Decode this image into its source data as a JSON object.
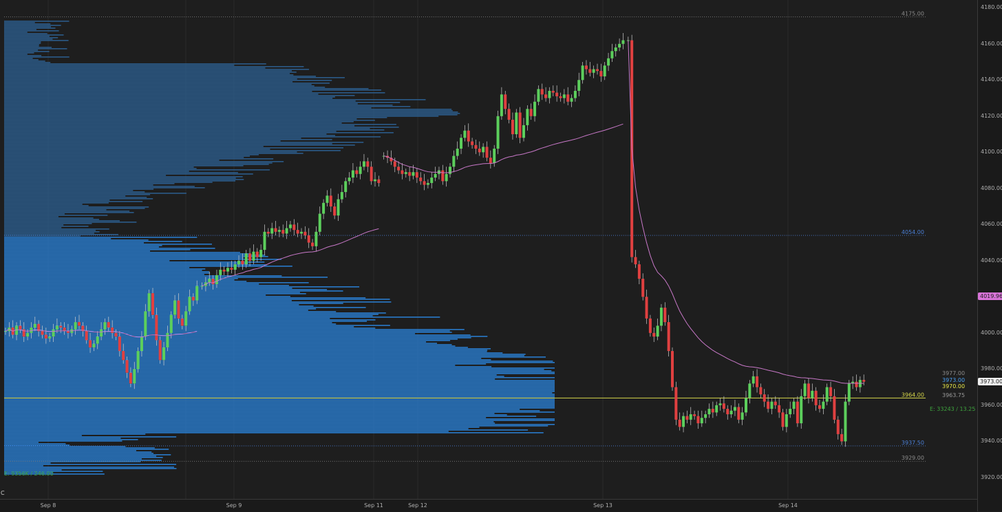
{
  "chart_data": {
    "type": "candlestick",
    "instrument_note": "",
    "y_range": [
      3915,
      4182
    ],
    "price_ticks": [
      "3920.00",
      "3940.00",
      "3960.00",
      "3980.00",
      "4000.00",
      "4020.00",
      "4040.00",
      "4060.00",
      "4080.00",
      "4100.00",
      "4120.00",
      "4140.00",
      "4160.00",
      "4180.00"
    ],
    "time_labels": [
      "Sep 8",
      "Sep 9",
      "Sep 11",
      "Sep 12",
      "Sep 13",
      "Sep 14"
    ],
    "levels": [
      {
        "label": "4175.00",
        "price": 4175,
        "color": "#8a8a8a",
        "style": "dotted"
      },
      {
        "label": "4054.00",
        "price": 4054,
        "color": "#4a7fd6",
        "style": "dotted"
      },
      {
        "label": "3964.00",
        "price": 3964,
        "color": "#d8d84a",
        "style": "solid"
      },
      {
        "label": "3937.50",
        "price": 3937.5,
        "color": "#4a7fd6",
        "style": "dotted"
      },
      {
        "label": "3929.00",
        "price": 3929,
        "color": "#8a8a8a",
        "style": "dotted"
      }
    ],
    "price_tags": [
      {
        "label": "4019.96",
        "price": 4019.96,
        "bg": "#d874d8",
        "fg": "#1e1e1e"
      },
      {
        "label": "3973.00",
        "price": 3973,
        "bg": "#f0f0f0",
        "fg": "#1e1e1e"
      }
    ],
    "right_labels": [
      {
        "label": "3977.00",
        "price": 3977,
        "color": "#8a8a8a"
      },
      {
        "label": "3973.00",
        "price": 3973.2,
        "color": "#4a9ef0"
      },
      {
        "label": "3970.00",
        "price": 3970,
        "color": "#e8e84a"
      },
      {
        "label": "3963.75",
        "price": 3965,
        "color": "#9a9a9a"
      }
    ],
    "volume_profile_footer": "E: 9356K / 246.00",
    "stats_footer": "E: 33243 / 13.25",
    "corner_label": "C",
    "vwap_color": "#c878c8",
    "bull_color": "#5ccf5c",
    "bear_color": "#e04040",
    "profile_color_upper": "#2c5f8f",
    "profile_color_value": "#2a7fd4",
    "sessions": [
      {
        "open": 4001,
        "seg": [
          4001,
          4003,
          3999,
          4004,
          4002,
          3998,
          4000,
          4003,
          4005,
          4001,
          3999,
          3997,
          3998,
          4002,
          4004,
          4003,
          4001,
          4000,
          4002,
          4006,
          4004,
          4001,
          3996,
          3992,
          3994,
          3998,
          4002,
          4006,
          4003,
          4000,
          3998,
          3990,
          3985,
          3978,
          3972,
          3980,
          3990,
          3998,
          4012,
          4022,
          4010,
          3996,
          3985,
          3992,
          4000,
          4010,
          4018,
          4008,
          4004,
          4012,
          4020,
          4018,
          4026
        ]
      },
      {
        "open": 4026,
        "seg": [
          4026,
          4028,
          4030,
          4027,
          4032,
          4035,
          4034,
          4036,
          4035,
          4038,
          4040,
          4038,
          4044,
          4040,
          4045,
          4042,
          4046,
          4056,
          4055,
          4058,
          4056,
          4057,
          4055,
          4058,
          4060,
          4057,
          4055,
          4056,
          4054,
          4050,
          4048,
          4056,
          4066,
          4072,
          4076,
          4070,
          4065,
          4074,
          4078,
          4084,
          4086,
          4090,
          4088,
          4092,
          4095,
          4092,
          4084,
          4085,
          4083
        ]
      },
      {
        "open": 4098,
        "seg": [
          4098,
          4097,
          4095,
          4092,
          4090,
          4088,
          4089,
          4087,
          4089,
          4086,
          4084,
          4082,
          4083,
          4086,
          4088,
          4090,
          4084,
          4088,
          4092,
          4098,
          4102,
          4108,
          4112,
          4106,
          4104,
          4102,
          4100,
          4103,
          4097,
          4094,
          4102,
          4120,
          4132,
          4124,
          4118,
          4110,
          4122,
          4108,
          4115,
          4124,
          4120,
          4128,
          4135,
          4132,
          4130,
          4134,
          4133,
          4131,
          4130,
          4132,
          4128,
          4130,
          4134,
          4140,
          4148,
          4146,
          4144,
          4146,
          4145,
          4142,
          4148,
          4152,
          4156,
          4158,
          4160,
          4162
        ]
      },
      {
        "open": 4162,
        "seg": [
          4162,
          4042,
          4038,
          4030,
          4020,
          4008,
          4000,
          3998,
          4004,
          4014,
          4006,
          3990,
          3970,
          3952,
          3948,
          3954,
          3952,
          3955,
          3954,
          3950,
          3953,
          3955,
          3958,
          3956,
          3960,
          3961,
          3958,
          3955,
          3957,
          3959,
          3952,
          3956,
          3964,
          3972,
          3976,
          3970,
          3966,
          3962,
          3958,
          3962,
          3960,
          3956,
          3948,
          3955,
          3958,
          3962,
          3950,
          3965,
          3972,
          3964,
          3968,
          3960,
          3958,
          3962,
          3970,
          3965,
          3952,
          3944,
          3940,
          3962,
          3972,
          3973,
          3970,
          3974,
          3973
        ]
      }
    ]
  }
}
